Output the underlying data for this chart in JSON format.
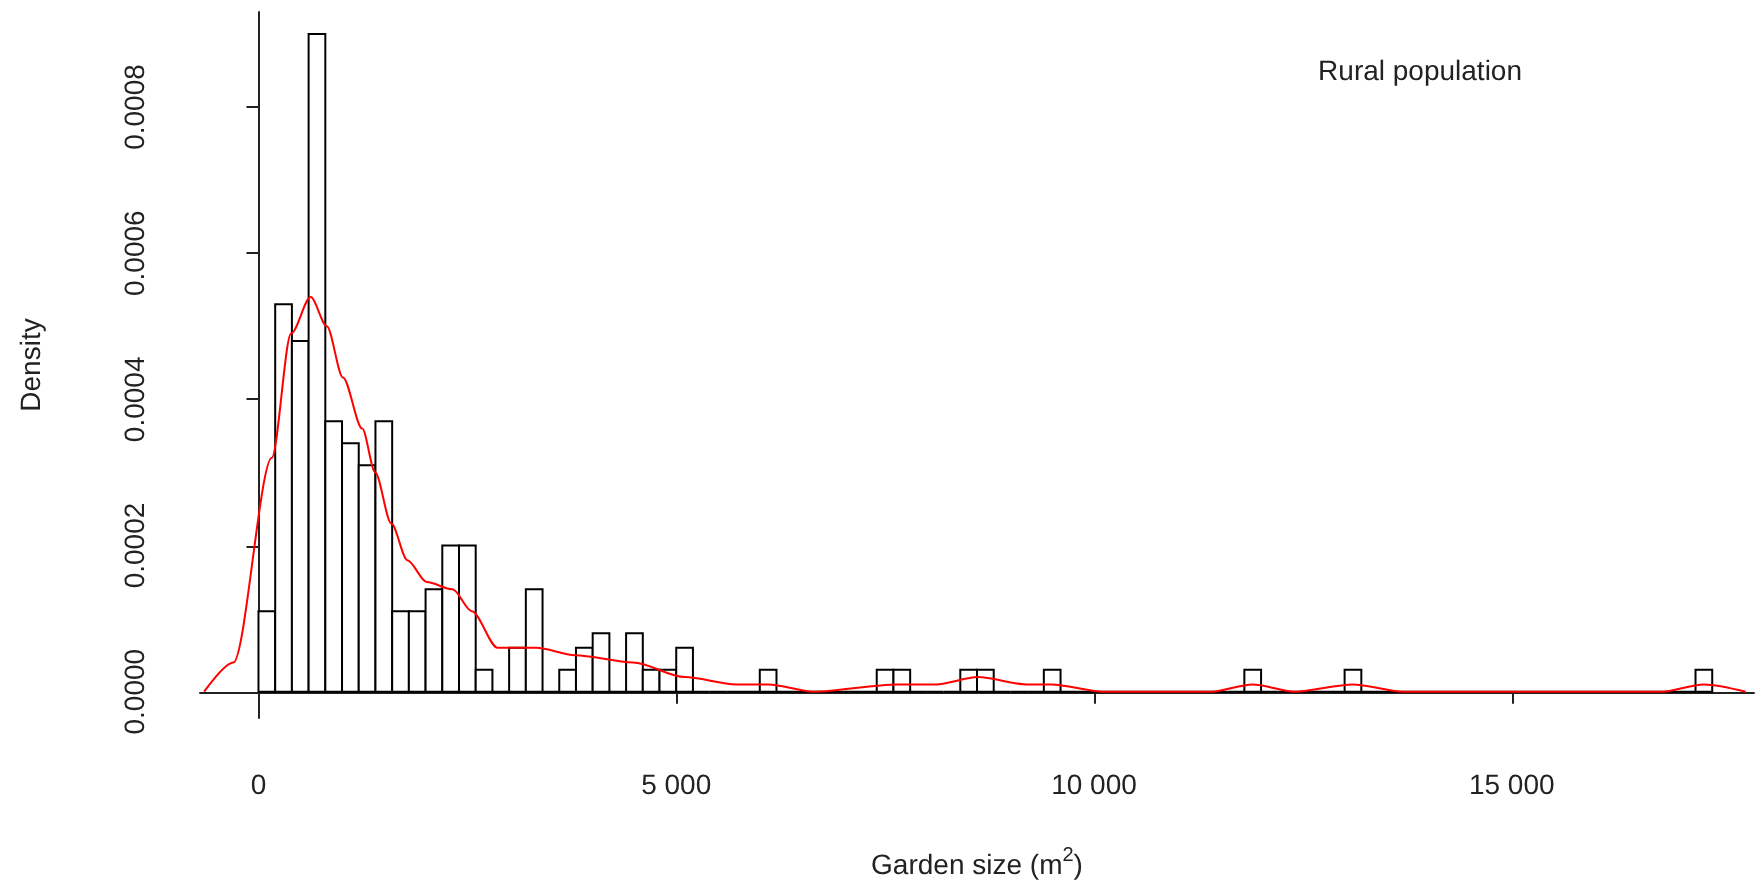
{
  "chart_data": {
    "type": "histogram",
    "xlabel": "Garden size (m$^{2}$)",
    "ylabel": "Density",
    "annotations": [
      "Rural population"
    ],
    "bins": [
      0,
      200,
      400,
      600,
      800,
      1000,
      1200,
      1400,
      1600,
      1800,
      2000,
      2200,
      2400,
      2600,
      2800,
      3000,
      3200,
      3400,
      3600,
      3800,
      4000,
      4200,
      4400,
      4600,
      4800,
      5000,
      5200,
      5400,
      5600,
      5800,
      6000,
      6200,
      6400,
      6600,
      6800,
      7000,
      7200,
      7400,
      7600,
      7800,
      8000,
      8200,
      8400,
      8600,
      8800,
      9000,
      9200,
      9400,
      9600,
      9800,
      10000,
      10200,
      10400,
      10600,
      10800,
      11000,
      11200,
      11400,
      11600,
      11800,
      12000,
      12200,
      12400,
      12600,
      12800,
      13000,
      13200,
      13400,
      13600,
      13800,
      14000,
      14200,
      14400,
      14600,
      14800,
      15000,
      15200,
      15400,
      15600,
      15800,
      16000,
      16200,
      16400,
      16600,
      16800,
      17000,
      17200,
      17400
    ],
    "series": [
      {
        "color": "#000000",
        "values": [
          0.00011,
          0.00053,
          0.00048,
          0.0009,
          0.00037,
          0.00034,
          0.00031,
          0.00037,
          0.00011,
          0.00011,
          0.00014,
          0.0002,
          0.0002,
          3e-05,
          0,
          6e-05,
          0.00014,
          0,
          3e-05,
          6e-05,
          8e-05,
          0,
          8e-05,
          3e-05,
          3e-05,
          6e-05,
          0,
          0,
          0,
          0,
          3e-05,
          0,
          0,
          0,
          0,
          0,
          0,
          3e-05,
          3e-05,
          0,
          0,
          0,
          3e-05,
          3e-05,
          0,
          0,
          0,
          3e-05,
          0,
          0,
          0,
          0,
          0,
          0,
          0,
          0,
          0,
          0,
          0,
          3e-05,
          0,
          0,
          0,
          0,
          0,
          3e-05,
          0,
          0,
          0,
          0,
          0,
          0,
          0,
          0,
          0,
          0,
          0,
          0,
          0,
          0,
          0,
          0,
          0,
          0,
          0,
          0,
          3e-05
        ]
      },
      {
        "type": "line",
        "color": "#ff0000",
        "x": [
          -650,
          -300,
          160,
          390,
          625,
          818,
          1011,
          1242,
          1397,
          1590,
          1782,
          2014,
          2322,
          2553,
          2863,
          3326,
          3789,
          4483,
          5100,
          5718,
          6103,
          6644,
          7646,
          8109,
          8611,
          9190,
          9491,
          10108,
          10500,
          11400,
          11900,
          12400,
          13100,
          13700,
          16800,
          17300,
          17800
        ],
        "values": [
          0,
          4e-05,
          0.00032,
          0.00049,
          0.00054,
          0.0005,
          0.00043,
          0.00036,
          0.0003,
          0.00023,
          0.00018,
          0.00015,
          0.00014,
          0.00011,
          6e-05,
          6e-05,
          5e-05,
          4e-05,
          2e-05,
          1e-05,
          1e-05,
          0,
          1e-05,
          1e-05,
          2e-05,
          1e-05,
          1e-05,
          0,
          0,
          0,
          1e-05,
          0,
          1e-05,
          0,
          0,
          1e-05,
          0
        ]
      }
    ],
    "marker": "none",
    "xlim": [
      -700,
      17900
    ],
    "xticks": [
      0,
      {
        "value": 5000,
        "label": "5 000"
      },
      {
        "value": 10000,
        "label": "10 000"
      },
      {
        "value": 15000,
        "label": "15 000"
      }
    ],
    "ylim": [
      -3.6e-05,
      0.00093
    ],
    "yticks": [
      {
        "value": 0,
        "label": "0.0000"
      },
      {
        "value": 0.0002,
        "label": "0.0002"
      },
      {
        "value": 0.0004,
        "label": "0.0004"
      },
      {
        "value": 0.0006,
        "label": "0.0006"
      },
      {
        "value": 0.0008,
        "label": "0.0008"
      }
    ]
  }
}
